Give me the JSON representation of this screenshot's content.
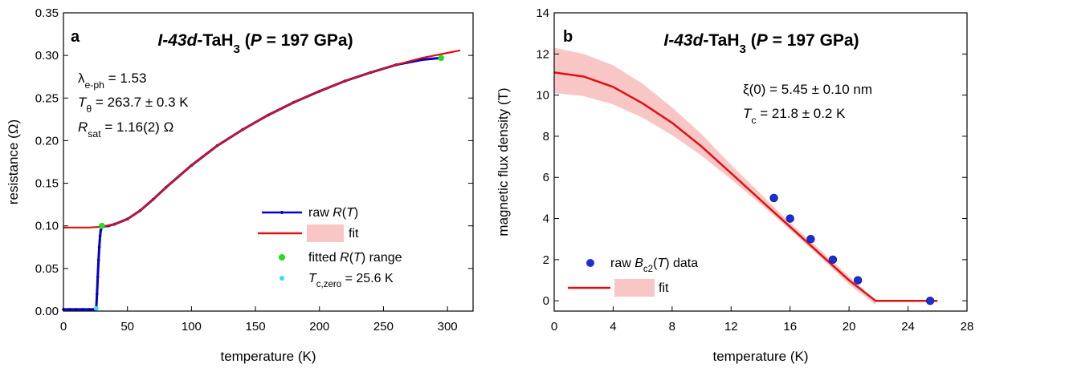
{
  "chart_data": [
    {
      "type": "line",
      "panel_label": "a",
      "title_parts": [
        {
          "t": "I-43d",
          "i": true
        },
        {
          "t": "-TaH"
        },
        {
          "t": "3",
          "sub": true
        },
        {
          "t": " ("
        },
        {
          "t": "P",
          "i": true
        },
        {
          "t": " = 197 GPa)"
        }
      ],
      "xlabel": "temperature (K)",
      "ylabel": "resistance (Ω)",
      "xlim": [
        0,
        320
      ],
      "ylim": [
        0,
        0.35
      ],
      "xticks": [
        0,
        50,
        100,
        150,
        200,
        250,
        300
      ],
      "yticks": [
        0.0,
        0.05,
        0.1,
        0.15,
        0.2,
        0.25,
        0.3,
        0.35
      ],
      "ytick_decimals": 2,
      "annotations": [
        [
          {
            "t": "λ"
          },
          {
            "t": "e-ph",
            "sub": true
          },
          {
            "t": " = 1.53"
          }
        ],
        [
          {
            "t": "T",
            "i": true
          },
          {
            "t": "θ",
            "sub": true
          },
          {
            "t": " = 263.7 ± 0.3 K"
          }
        ],
        [
          {
            "t": "R",
            "i": true
          },
          {
            "t": "sat",
            "sub": true
          },
          {
            "t": " = 1.16(2) Ω"
          }
        ]
      ],
      "legend": [
        [
          {
            "t": "raw "
          },
          {
            "t": "R",
            "i": true
          },
          {
            "t": "("
          },
          {
            "t": "T",
            "i": true
          },
          {
            "t": ")"
          }
        ],
        [
          {
            "t": "fit"
          }
        ],
        [
          {
            "t": "fitted "
          },
          {
            "t": "R",
            "i": true
          },
          {
            "t": "("
          },
          {
            "t": "T",
            "i": true
          },
          {
            "t": ") range"
          }
        ],
        [
          {
            "t": "T",
            "i": true
          },
          {
            "t": "c,zero",
            "sub": true
          },
          {
            "t": " = 25.6 K"
          }
        ]
      ],
      "legend_placement": "bottom-right",
      "series": [
        {
          "role": "raw",
          "color": "#0000cc",
          "x": [
            0,
            5,
            10,
            15,
            20,
            23,
            24.5,
            25.6,
            26.2,
            26.8,
            27.4,
            28,
            28.6,
            29.2,
            30,
            35,
            40,
            50,
            60,
            70,
            80,
            100,
            120,
            140,
            160,
            180,
            200,
            220,
            240,
            260,
            280,
            295
          ],
          "y": [
            0.002,
            0.002,
            0.002,
            0.002,
            0.002,
            0.002,
            0.002,
            0.003,
            0.02,
            0.04,
            0.06,
            0.075,
            0.088,
            0.095,
            0.099,
            0.1,
            0.102,
            0.108,
            0.118,
            0.131,
            0.145,
            0.171,
            0.194,
            0.213,
            0.23,
            0.245,
            0.258,
            0.27,
            0.28,
            0.289,
            0.295,
            0.297
          ]
        },
        {
          "role": "fit",
          "color": "#dd1111",
          "x": [
            0,
            10,
            20,
            30,
            40,
            50,
            60,
            70,
            80,
            90,
            100,
            120,
            140,
            160,
            180,
            200,
            220,
            240,
            260,
            280,
            300,
            310
          ],
          "y": [
            0.098,
            0.098,
            0.098,
            0.099,
            0.102,
            0.108,
            0.118,
            0.131,
            0.145,
            0.158,
            0.171,
            0.194,
            0.213,
            0.23,
            0.245,
            0.258,
            0.27,
            0.28,
            0.289,
            0.297,
            0.303,
            0.306
          ]
        }
      ],
      "fit_range_points": {
        "color": "#22dd22",
        "x": [
          30,
          295
        ],
        "y": [
          0.1,
          0.297
        ]
      },
      "tc_point": {
        "color": "#33ddff",
        "x": [
          25.6
        ],
        "y": [
          0.003
        ]
      }
    },
    {
      "type": "line",
      "panel_label": "b",
      "title_parts": [
        {
          "t": "I-43d",
          "i": true
        },
        {
          "t": "-TaH"
        },
        {
          "t": "3",
          "sub": true
        },
        {
          "t": " ("
        },
        {
          "t": "P",
          "i": true
        },
        {
          "t": " = 197 GPa)"
        }
      ],
      "xlabel": "temperature (K)",
      "ylabel": "magnetic flux density (T)",
      "xlim": [
        0,
        28
      ],
      "ylim": [
        -0.5,
        14
      ],
      "xticks": [
        0,
        4,
        8,
        12,
        16,
        20,
        24,
        28
      ],
      "yticks": [
        0,
        2,
        4,
        6,
        8,
        10,
        12,
        14
      ],
      "ytick_decimals": 0,
      "annotations": [
        [
          {
            "t": "ξ(0) = 5.45 ± 0.10 nm"
          }
        ],
        [
          {
            "t": "T",
            "i": true
          },
          {
            "t": "c",
            "sub": true
          },
          {
            "t": " = 21.8 ± 0.2 K"
          }
        ]
      ],
      "legend": [
        [
          {
            "t": "raw "
          },
          {
            "t": "B",
            "i": true
          },
          {
            "t": "c2",
            "sub": true
          },
          {
            "t": "("
          },
          {
            "t": "T",
            "i": true
          },
          {
            "t": ") data"
          }
        ],
        [
          {
            "t": "fit"
          }
        ]
      ],
      "legend_placement": "bottom-left",
      "points": {
        "color": "#1a2fd8",
        "x": [
          14.9,
          16.0,
          17.4,
          18.9,
          20.6,
          25.5
        ],
        "y": [
          5.0,
          4.0,
          3.0,
          2.0,
          1.0,
          0.0
        ]
      },
      "fit": {
        "color": "#dd1111",
        "x": [
          0,
          2,
          4,
          6,
          8,
          10,
          12,
          14,
          16,
          18,
          20,
          21.8,
          26
        ],
        "y": [
          11.1,
          10.9,
          10.4,
          9.6,
          8.65,
          7.5,
          6.2,
          4.9,
          3.6,
          2.3,
          1.0,
          0.0,
          0.0
        ]
      },
      "band": {
        "color": "#f9c6c6",
        "x": [
          0,
          2,
          4,
          6,
          8,
          10,
          12,
          14,
          16,
          18,
          20,
          21.8
        ],
        "lower": [
          10.1,
          9.95,
          9.55,
          8.9,
          8.05,
          7.05,
          5.9,
          4.7,
          3.45,
          2.15,
          0.8,
          -0.2
        ],
        "upper": [
          12.3,
          12.0,
          11.45,
          10.55,
          9.4,
          8.1,
          6.6,
          5.2,
          3.8,
          2.5,
          1.2,
          0.0
        ]
      }
    }
  ]
}
